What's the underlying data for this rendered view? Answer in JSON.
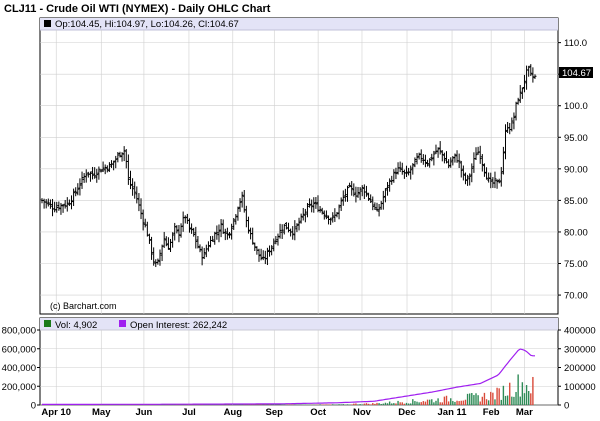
{
  "header": {
    "title": "CLJ11 - Crude Oil WTI (NYMEX) - Daily OHLC Chart"
  },
  "price_panel": {
    "legend_text": "Op:104.45, Hi:104.97, Lo:104.26, Cl:104.67",
    "last_price_label": "104.67",
    "credit": "(c) Barchart.com"
  },
  "volume_panel": {
    "vol_legend": "Vol: 4,902",
    "oi_legend": "Open Interest: 262,242"
  },
  "colors": {
    "panel_header": "#e3e3f7",
    "price_bars": "#000000",
    "volume_up": "#2e8b57",
    "volume_down": "#d94a3a",
    "open_interest": "#a020f0",
    "vol_swatch": "#1a7a1a",
    "oi_swatch": "#a020f0",
    "grid": "#cccccc"
  },
  "chart_data": [
    {
      "type": "ohlc",
      "title": "CLJ11 - Crude Oil WTI (NYMEX) - Daily OHLC Chart",
      "ylim": [
        67,
        112
      ],
      "y_ticks": [
        70.0,
        75.0,
        80.0,
        85.0,
        90.0,
        95.0,
        100.0,
        105.0,
        110.0
      ],
      "y_tick_labels": [
        "70.00",
        "75.00",
        "80.00",
        "85.00",
        "90.00",
        "95.00",
        "100.0",
        "105.0",
        "110.0"
      ],
      "x_month_labels": [
        "Apr 10",
        "May",
        "Jun",
        "Jul",
        "Aug",
        "Sep",
        "Oct",
        "Nov",
        "Dec",
        "Jan 11",
        "Feb",
        "Mar"
      ],
      "last": {
        "open": 104.45,
        "high": 104.97,
        "low": 104.26,
        "close": 104.67
      },
      "close_series_approx": [
        {
          "t": 0.0,
          "close": 85.0
        },
        {
          "t": 0.5,
          "close": 84.5
        },
        {
          "t": 1.0,
          "close": 83.8
        },
        {
          "t": 1.6,
          "close": 84.2
        },
        {
          "t": 2.2,
          "close": 84.5
        },
        {
          "t": 2.8,
          "close": 86.2
        },
        {
          "t": 3.3,
          "close": 88.0
        },
        {
          "t": 3.8,
          "close": 89.5
        },
        {
          "t": 4.3,
          "close": 89.0
        },
        {
          "t": 4.8,
          "close": 89.8
        },
        {
          "t": 5.3,
          "close": 90.2
        },
        {
          "t": 5.8,
          "close": 90.5
        },
        {
          "t": 6.2,
          "close": 91.5
        },
        {
          "t": 6.6,
          "close": 92.5
        },
        {
          "t": 7.0,
          "close": 93.0
        },
        {
          "t": 7.3,
          "close": 88.0
        },
        {
          "t": 7.6,
          "close": 87.0
        },
        {
          "t": 7.9,
          "close": 86.0
        },
        {
          "t": 8.2,
          "close": 84.0
        },
        {
          "t": 8.5,
          "close": 82.0
        },
        {
          "t": 8.8,
          "close": 80.5
        },
        {
          "t": 9.1,
          "close": 78.0
        },
        {
          "t": 9.4,
          "close": 75.5
        },
        {
          "t": 9.7,
          "close": 74.5
        },
        {
          "t": 10.0,
          "close": 77.0
        },
        {
          "t": 10.3,
          "close": 79.0
        },
        {
          "t": 10.6,
          "close": 77.5
        },
        {
          "t": 10.9,
          "close": 78.5
        },
        {
          "t": 11.2,
          "close": 80.5
        },
        {
          "t": 11.5,
          "close": 79.5
        },
        {
          "t": 11.8,
          "close": 81.5
        },
        {
          "t": 12.1,
          "close": 82.5
        },
        {
          "t": 12.4,
          "close": 80.5
        },
        {
          "t": 12.7,
          "close": 80.0
        },
        {
          "t": 13.0,
          "close": 78.5
        },
        {
          "t": 13.3,
          "close": 77.0
        },
        {
          "t": 13.6,
          "close": 76.0
        },
        {
          "t": 13.9,
          "close": 77.5
        },
        {
          "t": 14.2,
          "close": 78.5
        },
        {
          "t": 14.5,
          "close": 79.5
        },
        {
          "t": 14.8,
          "close": 80.0
        },
        {
          "t": 15.1,
          "close": 81.0
        },
        {
          "t": 15.4,
          "close": 80.0
        },
        {
          "t": 15.7,
          "close": 79.5
        },
        {
          "t": 16.0,
          "close": 81.0
        },
        {
          "t": 16.3,
          "close": 82.5
        },
        {
          "t": 16.6,
          "close": 84.5
        },
        {
          "t": 16.9,
          "close": 85.5
        },
        {
          "t": 17.2,
          "close": 82.0
        },
        {
          "t": 17.5,
          "close": 80.0
        },
        {
          "t": 17.8,
          "close": 78.5
        },
        {
          "t": 18.1,
          "close": 77.0
        },
        {
          "t": 18.4,
          "close": 76.0
        },
        {
          "t": 18.7,
          "close": 75.5
        },
        {
          "t": 19.0,
          "close": 76.5
        },
        {
          "t": 19.3,
          "close": 77.5
        },
        {
          "t": 19.6,
          "close": 78.5
        },
        {
          "t": 19.9,
          "close": 79.5
        },
        {
          "t": 20.2,
          "close": 80.5
        },
        {
          "t": 20.5,
          "close": 81.0
        },
        {
          "t": 20.8,
          "close": 80.5
        },
        {
          "t": 21.1,
          "close": 80.0
        },
        {
          "t": 21.4,
          "close": 80.5
        },
        {
          "t": 21.7,
          "close": 81.5
        },
        {
          "t": 22.0,
          "close": 82.5
        },
        {
          "t": 22.3,
          "close": 83.5
        },
        {
          "t": 22.6,
          "close": 84.0
        },
        {
          "t": 22.9,
          "close": 84.5
        },
        {
          "t": 23.2,
          "close": 84.0
        },
        {
          "t": 23.5,
          "close": 83.5
        },
        {
          "t": 23.8,
          "close": 83.0
        },
        {
          "t": 24.1,
          "close": 82.5
        },
        {
          "t": 24.4,
          "close": 82.0
        },
        {
          "t": 24.7,
          "close": 82.5
        },
        {
          "t": 25.0,
          "close": 83.5
        },
        {
          "t": 25.3,
          "close": 85.0
        },
        {
          "t": 25.6,
          "close": 86.0
        },
        {
          "t": 25.9,
          "close": 87.0
        },
        {
          "t": 26.2,
          "close": 86.5
        },
        {
          "t": 26.5,
          "close": 86.0
        },
        {
          "t": 26.8,
          "close": 86.5
        },
        {
          "t": 27.1,
          "close": 87.0
        },
        {
          "t": 27.4,
          "close": 86.0
        },
        {
          "t": 27.7,
          "close": 85.0
        },
        {
          "t": 28.0,
          "close": 84.0
        },
        {
          "t": 28.3,
          "close": 83.0
        },
        {
          "t": 28.6,
          "close": 84.5
        },
        {
          "t": 28.9,
          "close": 86.0
        },
        {
          "t": 29.2,
          "close": 87.5
        },
        {
          "t": 29.5,
          "close": 88.5
        },
        {
          "t": 29.8,
          "close": 89.5
        },
        {
          "t": 30.1,
          "close": 90.0
        },
        {
          "t": 30.4,
          "close": 89.5
        },
        {
          "t": 30.7,
          "close": 89.0
        },
        {
          "t": 31.0,
          "close": 89.5
        },
        {
          "t": 31.3,
          "close": 90.5
        },
        {
          "t": 31.6,
          "close": 91.5
        },
        {
          "t": 31.9,
          "close": 92.0
        },
        {
          "t": 32.2,
          "close": 91.5
        },
        {
          "t": 32.5,
          "close": 91.0
        },
        {
          "t": 32.8,
          "close": 91.5
        },
        {
          "t": 33.1,
          "close": 92.5
        },
        {
          "t": 33.4,
          "close": 93.0
        },
        {
          "t": 33.7,
          "close": 92.5
        },
        {
          "t": 34.0,
          "close": 91.5
        },
        {
          "t": 34.3,
          "close": 90.5
        },
        {
          "t": 34.6,
          "close": 91.5
        },
        {
          "t": 34.9,
          "close": 92.0
        },
        {
          "t": 35.2,
          "close": 91.0
        },
        {
          "t": 35.5,
          "close": 89.0
        },
        {
          "t": 35.8,
          "close": 88.0
        },
        {
          "t": 36.1,
          "close": 89.0
        },
        {
          "t": 36.4,
          "close": 91.0
        },
        {
          "t": 36.7,
          "close": 93.0
        },
        {
          "t": 37.0,
          "close": 92.0
        },
        {
          "t": 37.3,
          "close": 90.0
        },
        {
          "t": 37.6,
          "close": 88.5
        },
        {
          "t": 37.9,
          "close": 87.5
        },
        {
          "t": 38.2,
          "close": 88.0
        },
        {
          "t": 38.5,
          "close": 87.5
        },
        {
          "t": 38.8,
          "close": 90.0
        },
        {
          "t": 39.0,
          "close": 94.0
        },
        {
          "t": 39.2,
          "close": 97.0
        },
        {
          "t": 39.5,
          "close": 96.5
        },
        {
          "t": 39.8,
          "close": 98.0
        },
        {
          "t": 40.1,
          "close": 101.0
        },
        {
          "t": 40.4,
          "close": 102.0
        },
        {
          "t": 40.7,
          "close": 104.0
        },
        {
          "t": 41.0,
          "close": 106.0
        },
        {
          "t": 41.3,
          "close": 104.5
        },
        {
          "t": 41.6,
          "close": 104.67
        }
      ]
    },
    {
      "type": "bar+line",
      "title": "Volume / Open Interest",
      "left_axis": {
        "ylim": [
          0,
          800000
        ],
        "tick_labels": [
          "0",
          "200,000",
          "400,000",
          "600,000",
          "800,000"
        ]
      },
      "right_axis": {
        "ylim": [
          0,
          400000
        ],
        "tick_labels": [
          "0",
          "100000",
          "200000",
          "300000",
          "400000"
        ]
      },
      "volume_last": 4902,
      "open_interest_last": 262242,
      "open_interest_series_approx": [
        {
          "t": 0,
          "oi": 3000
        },
        {
          "t": 10,
          "oi": 4000
        },
        {
          "t": 20,
          "oi": 6000
        },
        {
          "t": 25,
          "oi": 12000
        },
        {
          "t": 28,
          "oi": 20000
        },
        {
          "t": 30,
          "oi": 40000
        },
        {
          "t": 33,
          "oi": 70000
        },
        {
          "t": 35,
          "oi": 95000
        },
        {
          "t": 37,
          "oi": 115000
        },
        {
          "t": 38.5,
          "oi": 160000
        },
        {
          "t": 39.5,
          "oi": 240000
        },
        {
          "t": 40.3,
          "oi": 300000
        },
        {
          "t": 40.8,
          "oi": 290000
        },
        {
          "t": 41.3,
          "oi": 262242
        }
      ]
    }
  ]
}
